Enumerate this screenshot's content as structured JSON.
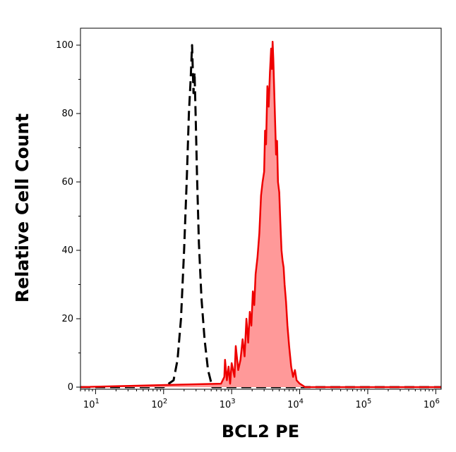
{
  "chart_data": {
    "type": "area",
    "title": "",
    "xlabel": "BCL2 PE",
    "ylabel": "Relative Cell Count",
    "x_scale": "log",
    "xlim": [
      6,
      1200000
    ],
    "ylim": [
      0,
      105
    ],
    "x_ticks": [
      {
        "value": 10,
        "base": "10",
        "exp": "1"
      },
      {
        "value": 100,
        "base": "10",
        "exp": "2"
      },
      {
        "value": 1000,
        "base": "10",
        "exp": "3"
      },
      {
        "value": 10000,
        "base": "10",
        "exp": "4"
      },
      {
        "value": 100000,
        "base": "10",
        "exp": "5"
      },
      {
        "value": 1000000,
        "base": "10",
        "exp": "6"
      }
    ],
    "y_ticks": [
      "0",
      "20",
      "40",
      "60",
      "80",
      "100"
    ],
    "grid": false,
    "legend": "none",
    "series": [
      {
        "style": "dashed",
        "color": "#000000",
        "fill": "none",
        "x": [
          6,
          100,
          140,
          160,
          180,
          200,
          220,
          235,
          250,
          262,
          268,
          275,
          285,
          295,
          310,
          330,
          360,
          400,
          450,
          520,
          1200000
        ],
        "y": [
          0,
          0,
          2,
          8,
          20,
          40,
          62,
          80,
          90,
          100,
          93,
          86,
          92,
          80,
          62,
          42,
          26,
          14,
          5,
          0,
          0
        ]
      },
      {
        "style": "solid",
        "color": "#ee0000",
        "fill": "#ff9999",
        "x": [
          6,
          700,
          780,
          800,
          850,
          900,
          950,
          1000,
          1100,
          1150,
          1250,
          1350,
          1450,
          1550,
          1650,
          1750,
          1850,
          1950,
          2050,
          2150,
          2250,
          2400,
          2550,
          2700,
          2850,
          3000,
          3100,
          3200,
          3350,
          3500,
          3650,
          3800,
          3900,
          4000,
          4100,
          4200,
          4350,
          4500,
          4650,
          4800,
          5000,
          5200,
          5400,
          5600,
          5800,
          6000,
          6300,
          6600,
          7000,
          7500,
          8000,
          8500,
          9000,
          10000,
          11000,
          12000,
          1200000
        ],
        "y": [
          0,
          1,
          3,
          8,
          2,
          6,
          1,
          7,
          3,
          12,
          5,
          8,
          14,
          9,
          20,
          13,
          22,
          18,
          28,
          24,
          33,
          38,
          45,
          56,
          60,
          63,
          75,
          71,
          88,
          82,
          92,
          99,
          93,
          101,
          96,
          88,
          78,
          68,
          72,
          60,
          57,
          48,
          40,
          37,
          35,
          30,
          25,
          18,
          12,
          6,
          3,
          5,
          2,
          1,
          0.5,
          0,
          0
        ]
      }
    ]
  }
}
